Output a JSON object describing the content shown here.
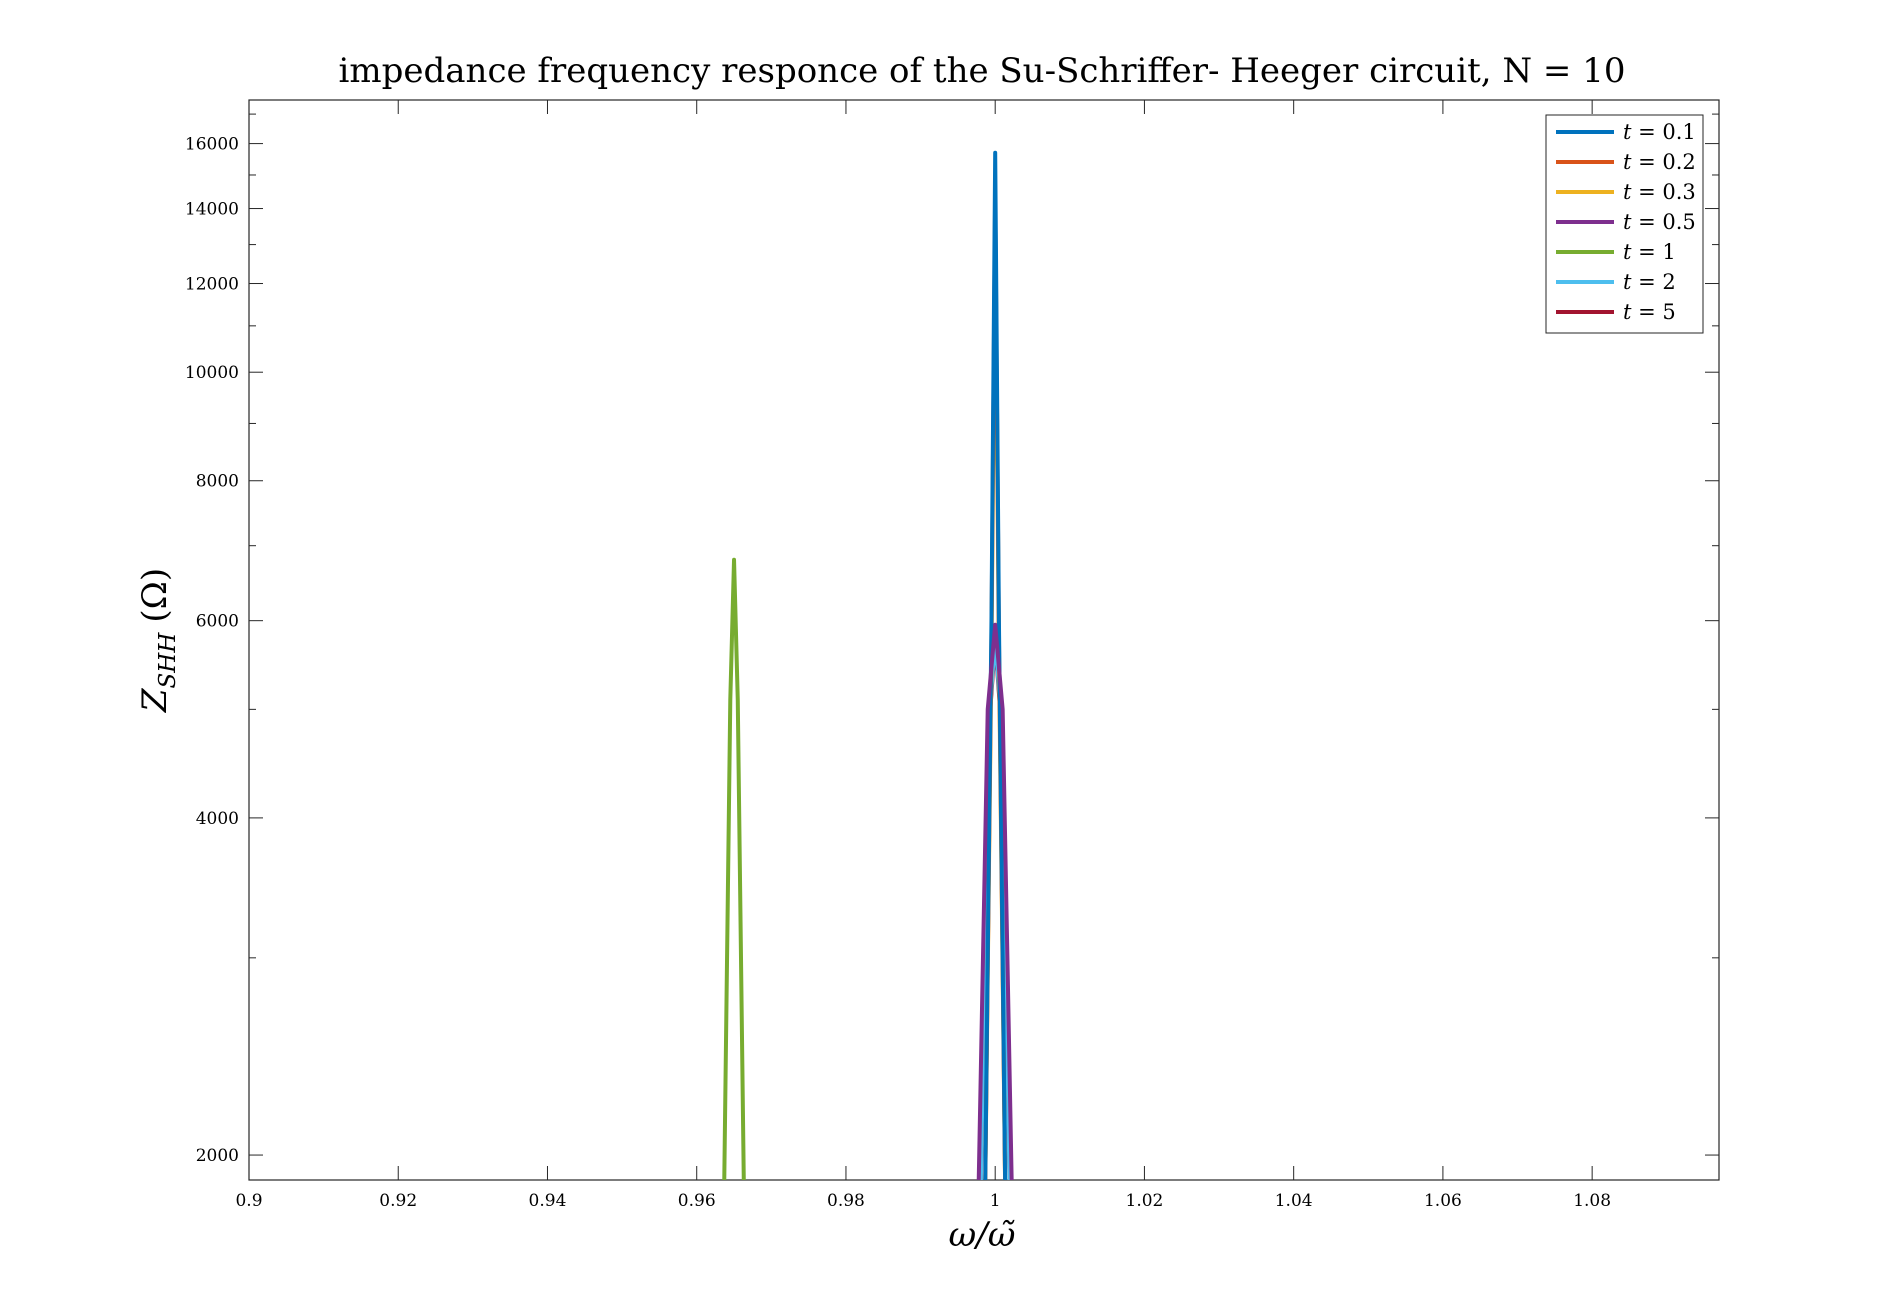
{
  "chart_data": {
    "type": "line",
    "title": "impedance frequency responce of the Su-Schriffer- Heeger circuit, N = 10",
    "xlabel": {
      "main": "ω/ω̃"
    },
    "ylabel": {
      "main": "Z",
      "sub": "SHH",
      "unit": "(Ω)"
    },
    "xlim": [
      0.9,
      1.097
    ],
    "ylim": [
      1900,
      17500
    ],
    "yscale": "log",
    "grid": false,
    "legend_position": "top-right",
    "x_ticks": [
      0.9,
      0.92,
      0.94,
      0.96,
      0.98,
      1,
      1.02,
      1.04,
      1.06,
      1.08
    ],
    "x_tick_labels": [
      "0.9",
      "0.92",
      "0.94",
      "0.96",
      "0.98",
      "1",
      "1.02",
      "1.04",
      "1.06",
      "1.08"
    ],
    "y_ticks": [
      2000,
      4000,
      6000,
      8000,
      10000,
      12000,
      14000,
      16000
    ],
    "y_tick_labels": [
      "2000",
      "4000",
      "6000",
      "8000",
      "10000",
      "12000",
      "14000",
      "16000"
    ],
    "series": [
      {
        "name": "t = 0.1",
        "color": "#0072BD",
        "x": [
          0.9985,
          0.9995,
          1.0,
          1.0005,
          1.0015
        ],
        "y": [
          1500,
          6000,
          15700,
          6000,
          1500
        ]
      },
      {
        "name": "t = 0.2",
        "color": "#D95319",
        "x": [
          0.9985,
          0.9995,
          1.0,
          1.0005,
          1.0015
        ],
        "y": [
          1500,
          5800,
          14500,
          5800,
          1500
        ]
      },
      {
        "name": "t = 0.3",
        "color": "#EDB120",
        "x": [
          0.9985,
          0.9995,
          1.0,
          1.0005,
          1.0015
        ],
        "y": [
          1500,
          5600,
          13300,
          5600,
          1500
        ]
      },
      {
        "name": "t = 0.5",
        "color": "#7E2F8E",
        "x": [
          0.9975,
          0.999,
          1.0,
          1.001,
          1.0025
        ],
        "y": [
          1500,
          5000,
          5950,
          5000,
          1500
        ]
      },
      {
        "name": "t = 1",
        "color": "#77AC30",
        "x": [
          0.9635,
          0.9645,
          0.965,
          0.9655,
          0.9665
        ],
        "y": [
          1500,
          5100,
          6800,
          5100,
          1500
        ]
      },
      {
        "name": "t = 2",
        "color": "#4DBEEE",
        "x": [
          0.9978,
          0.9992,
          1.0,
          1.0008,
          1.0022
        ],
        "y": [
          1500,
          4900,
          5800,
          4900,
          1500
        ]
      },
      {
        "name": "t = 5",
        "color": "#A2142F",
        "x": [
          0.9978,
          0.9992,
          1.0,
          1.0008,
          1.0022
        ],
        "y": [
          1500,
          4850,
          5750,
          4850,
          1500
        ]
      }
    ],
    "legend_labels": [
      {
        "var": "t",
        "eq": "= 0.1"
      },
      {
        "var": "t",
        "eq": "= 0.2"
      },
      {
        "var": "t",
        "eq": "= 0.3"
      },
      {
        "var": "t",
        "eq": "= 0.5"
      },
      {
        "var": "t",
        "eq": "= 1"
      },
      {
        "var": "t",
        "eq": "= 2"
      },
      {
        "var": "t",
        "eq": "= 5"
      }
    ]
  }
}
